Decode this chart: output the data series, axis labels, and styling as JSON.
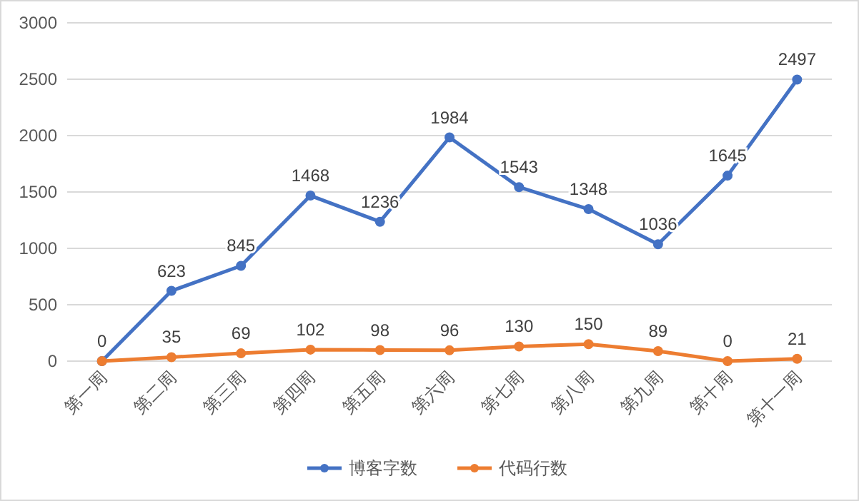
{
  "chart_data": {
    "type": "line",
    "categories": [
      "第一周",
      "第二周",
      "第三周",
      "第四周",
      "第五周",
      "第六周",
      "第七周",
      "第八周",
      "第九周",
      "第十周",
      "第十一周"
    ],
    "series": [
      {
        "name": "博客字数",
        "color": "#4472c4",
        "values": [
          0,
          623,
          845,
          1468,
          1236,
          1984,
          1543,
          1348,
          1036,
          1645,
          2497
        ],
        "value_labels": [
          "0",
          "623",
          "845",
          "1468",
          "1236",
          "1984",
          "1543",
          "1348",
          "1036",
          "1645",
          "2497"
        ]
      },
      {
        "name": "代码行数",
        "color": "#ed7d31",
        "values": [
          0,
          35,
          69,
          102,
          98,
          96,
          130,
          150,
          89,
          0,
          21
        ],
        "value_labels": [
          null,
          "35",
          "69",
          "102",
          "98",
          "96",
          "130",
          "150",
          "89",
          "0",
          "21"
        ]
      }
    ],
    "ylim": [
      0,
      3000
    ],
    "yticks": [
      0,
      500,
      1000,
      1500,
      2000,
      2500,
      3000
    ],
    "grid": "y",
    "legend": "bottom",
    "marker": "circle",
    "line_style": "solid"
  }
}
